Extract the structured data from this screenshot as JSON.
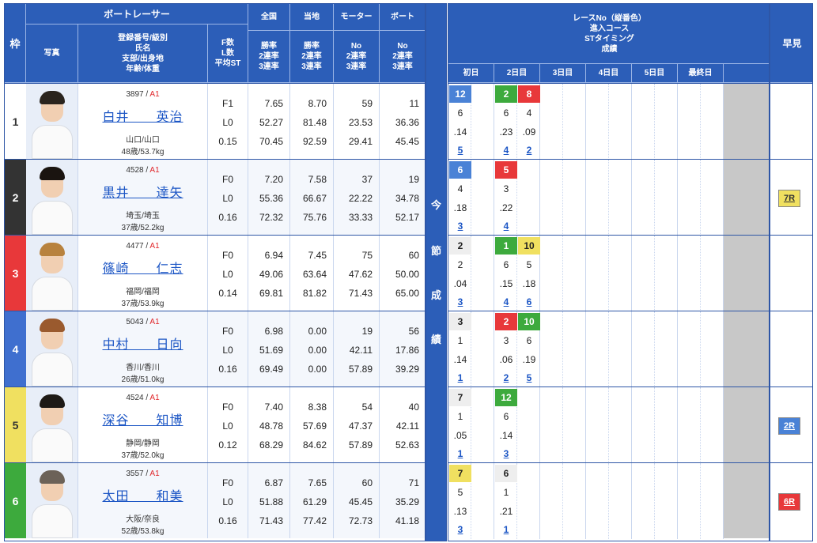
{
  "header": {
    "frame": "枠",
    "photo": "写真",
    "boat_racer": "ボートレーサー",
    "racer_info": [
      "登録番号/級別",
      "氏名",
      "支部/出身地",
      "年齢/体重"
    ],
    "fl": [
      "F数",
      "L数",
      "平均ST"
    ],
    "national": "全国",
    "local": "当地",
    "motor": "モーター",
    "boat": "ボート",
    "rate": [
      "勝率",
      "2連率",
      "3連率"
    ],
    "no_rate": [
      "No",
      "2連率",
      "3連率"
    ],
    "race_title": [
      "レースNo（縦番色）",
      "進入コース",
      "STタイミング",
      "成績"
    ],
    "days": [
      "初日",
      "2日目",
      "3日目",
      "4日目",
      "5日目",
      "最終日"
    ],
    "early": "早見",
    "series_label": [
      "今",
      "節",
      "成",
      "績"
    ]
  },
  "racers": [
    {
      "frame": "1",
      "frame_color": "#ffffff",
      "frame_text": "#333333",
      "reg": "3897",
      "cls": "A1",
      "name": "白井　　英治",
      "pref": "山口/山口",
      "age": "48歳/53.7kg",
      "f": "F1",
      "l": "L0",
      "st": "0.15",
      "nat": [
        "7.65",
        "52.27",
        "70.45"
      ],
      "loc": [
        "8.70",
        "81.48",
        "92.59"
      ],
      "motor": [
        "59",
        "23.53",
        "29.41"
      ],
      "boat": [
        "11",
        "36.36",
        "45.45"
      ],
      "hair": "#2a241e",
      "races": [
        {
          "day": 0,
          "no": "12",
          "bg": "#4a82d6",
          "fg": "#ffffff",
          "course": "6",
          "st": ".14",
          "rank": "5"
        },
        {
          "day": 1,
          "no": "2",
          "bg": "#3daa3d",
          "fg": "#ffffff",
          "course": "6",
          "st": ".23",
          "rank": "4"
        },
        {
          "day": 2,
          "no": "8",
          "bg": "#e8383a",
          "fg": "#ffffff",
          "course": "4",
          "st": ".09",
          "rank": "2"
        }
      ],
      "early": ""
    },
    {
      "frame": "2",
      "frame_color": "#333333",
      "frame_text": "#ffffff",
      "reg": "4528",
      "cls": "A1",
      "name": "黒井　　達矢",
      "pref": "埼玉/埼玉",
      "age": "37歳/52.2kg",
      "f": "F0",
      "l": "L0",
      "st": "0.16",
      "nat": [
        "7.20",
        "55.36",
        "72.32"
      ],
      "loc": [
        "7.58",
        "66.67",
        "75.76"
      ],
      "motor": [
        "37",
        "22.22",
        "33.33"
      ],
      "boat": [
        "19",
        "34.78",
        "52.17"
      ],
      "hair": "#1a1410",
      "races": [
        {
          "day": 0,
          "no": "6",
          "bg": "#4a82d6",
          "fg": "#ffffff",
          "course": "4",
          "st": ".18",
          "rank": "3"
        },
        {
          "day": 1,
          "no": "5",
          "bg": "#e8383a",
          "fg": "#ffffff",
          "course": "3",
          "st": ".22",
          "rank": "4"
        }
      ],
      "early": "7R",
      "early_bg": "#f0e060",
      "early_fg": "#333333"
    },
    {
      "frame": "3",
      "frame_color": "#e8383a",
      "frame_text": "#ffffff",
      "reg": "4477",
      "cls": "A1",
      "name": "篠崎　　仁志",
      "pref": "福岡/福岡",
      "age": "37歳/53.9kg",
      "f": "F0",
      "l": "L0",
      "st": "0.14",
      "nat": [
        "6.94",
        "49.06",
        "69.81"
      ],
      "loc": [
        "7.45",
        "63.64",
        "81.82"
      ],
      "motor": [
        "75",
        "47.62",
        "71.43"
      ],
      "boat": [
        "60",
        "50.00",
        "65.00"
      ],
      "hair": "#b8823e",
      "races": [
        {
          "day": 0,
          "no": "2",
          "bg": "#eeeeee",
          "fg": "#222222",
          "course": "2",
          "st": ".04",
          "rank": "3"
        },
        {
          "day": 1,
          "no": "1",
          "bg": "#3daa3d",
          "fg": "#ffffff",
          "course": "6",
          "st": ".15",
          "rank": "4"
        },
        {
          "day": 2,
          "no": "10",
          "bg": "#f0e060",
          "fg": "#222222",
          "course": "5",
          "st": ".18",
          "rank": "6"
        }
      ],
      "early": ""
    },
    {
      "frame": "4",
      "frame_color": "#3f6fcf",
      "frame_text": "#ffffff",
      "reg": "5043",
      "cls": "A1",
      "name": "中村　　日向",
      "pref": "香川/香川",
      "age": "26歳/51.0kg",
      "f": "F0",
      "l": "L0",
      "st": "0.16",
      "nat": [
        "6.98",
        "51.69",
        "69.49"
      ],
      "loc": [
        "0.00",
        "0.00",
        "0.00"
      ],
      "motor": [
        "19",
        "42.11",
        "57.89"
      ],
      "boat": [
        "56",
        "17.86",
        "39.29"
      ],
      "hair": "#9a5a2e",
      "races": [
        {
          "day": 0,
          "no": "3",
          "bg": "#eeeeee",
          "fg": "#222222",
          "course": "1",
          "st": ".14",
          "rank": "1"
        },
        {
          "day": 1,
          "no": "2",
          "bg": "#e8383a",
          "fg": "#ffffff",
          "course": "3",
          "st": ".06",
          "rank": "2"
        },
        {
          "day": 2,
          "no": "10",
          "bg": "#3daa3d",
          "fg": "#ffffff",
          "course": "6",
          "st": ".19",
          "rank": "5"
        }
      ],
      "early": ""
    },
    {
      "frame": "5",
      "frame_color": "#f0e060",
      "frame_text": "#333333",
      "reg": "4524",
      "cls": "A1",
      "name": "深谷　　知博",
      "pref": "静岡/静岡",
      "age": "37歳/52.0kg",
      "f": "F0",
      "l": "L0",
      "st": "0.12",
      "nat": [
        "7.40",
        "48.78",
        "68.29"
      ],
      "loc": [
        "8.38",
        "57.69",
        "84.62"
      ],
      "motor": [
        "54",
        "47.37",
        "57.89"
      ],
      "boat": [
        "40",
        "42.11",
        "52.63"
      ],
      "hair": "#1e1a16",
      "races": [
        {
          "day": 0,
          "no": "7",
          "bg": "#eeeeee",
          "fg": "#222222",
          "course": "1",
          "st": ".05",
          "rank": "1"
        },
        {
          "day": 1,
          "no": "12",
          "bg": "#3daa3d",
          "fg": "#ffffff",
          "course": "6",
          "st": ".14",
          "rank": "3"
        }
      ],
      "early": "2R",
      "early_bg": "#4a82d6",
      "early_fg": "#ffffff"
    },
    {
      "frame": "6",
      "frame_color": "#3daa3d",
      "frame_text": "#ffffff",
      "reg": "3557",
      "cls": "A1",
      "name": "太田　　和美",
      "pref": "大阪/奈良",
      "age": "52歳/53.8kg",
      "f": "F0",
      "l": "L0",
      "st": "0.16",
      "nat": [
        "6.87",
        "51.88",
        "71.43"
      ],
      "loc": [
        "7.65",
        "61.29",
        "77.42"
      ],
      "motor": [
        "60",
        "45.45",
        "72.73"
      ],
      "boat": [
        "71",
        "35.29",
        "41.18"
      ],
      "hair": "#6c6258",
      "races": [
        {
          "day": 0,
          "no": "7",
          "bg": "#f0e060",
          "fg": "#222222",
          "course": "5",
          "st": ".13",
          "rank": "3"
        },
        {
          "day": 1,
          "no": "6",
          "bg": "#eeeeee",
          "fg": "#222222",
          "course": "1",
          "st": ".21",
          "rank": "1"
        }
      ],
      "early": "6R",
      "early_bg": "#e8383a",
      "early_fg": "#ffffff"
    }
  ]
}
